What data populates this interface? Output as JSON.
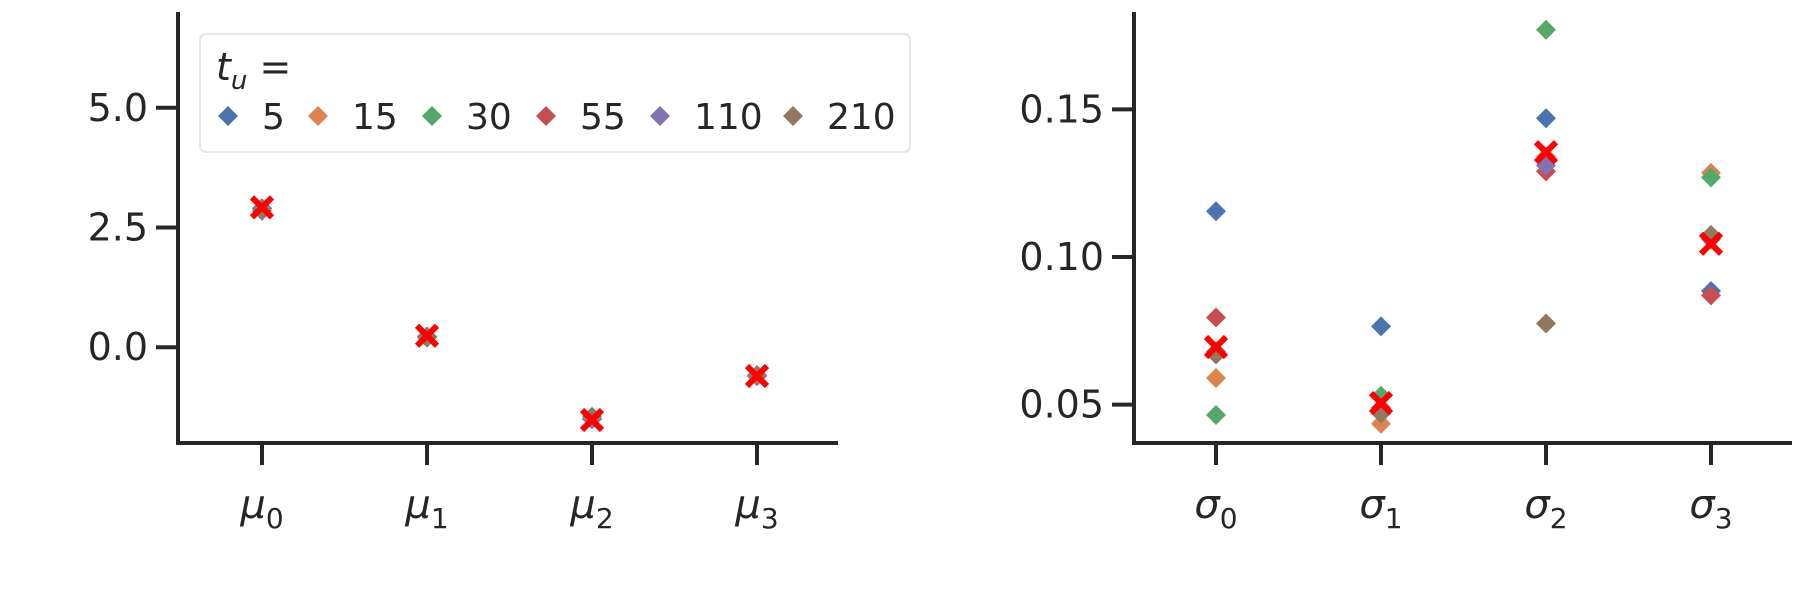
{
  "legend": {
    "title_var": "t",
    "title_sub": "u",
    "title_rest": " =",
    "entries": [
      {
        "label": "5",
        "color": "#4C72B0"
      },
      {
        "label": "15",
        "color": "#DD8452"
      },
      {
        "label": "30",
        "color": "#55A868"
      },
      {
        "label": "55",
        "color": "#C44E52"
      },
      {
        "label": "110",
        "color": "#8172B3"
      },
      {
        "label": "210",
        "color": "#937860"
      }
    ]
  },
  "mean_marker_color": "#FF0000",
  "chart_data": [
    {
      "type": "scatter",
      "legend_position": "upper-left",
      "categories": [
        {
          "symbol": "μ",
          "sub": "0"
        },
        {
          "symbol": "μ",
          "sub": "1"
        },
        {
          "symbol": "μ",
          "sub": "2"
        },
        {
          "symbol": "μ",
          "sub": "3"
        }
      ],
      "yticks": [
        "0.0",
        "2.5",
        "5.0"
      ],
      "ytick_values": [
        0.0,
        2.5,
        5.0
      ],
      "ylim": [
        -2.0,
        7.0
      ],
      "series": [
        {
          "name": "5",
          "values": [
            2.9,
            0.22,
            -1.5,
            -0.6
          ]
        },
        {
          "name": "15",
          "values": [
            2.9,
            0.22,
            -1.5,
            -0.6
          ]
        },
        {
          "name": "30",
          "values": [
            2.9,
            0.22,
            -1.5,
            -0.6
          ]
        },
        {
          "name": "55",
          "values": [
            2.9,
            0.22,
            -1.5,
            -0.6
          ]
        },
        {
          "name": "110",
          "values": [
            2.9,
            0.22,
            -1.5,
            -0.6
          ]
        },
        {
          "name": "210",
          "values": [
            2.85,
            0.2,
            -1.45,
            -0.58
          ]
        }
      ],
      "mean": [
        2.92,
        0.24,
        -1.52,
        -0.6
      ]
    },
    {
      "type": "scatter",
      "categories": [
        {
          "symbol": "σ",
          "sub": "0"
        },
        {
          "symbol": "σ",
          "sub": "1"
        },
        {
          "symbol": "σ",
          "sub": "2"
        },
        {
          "symbol": "σ",
          "sub": "3"
        }
      ],
      "yticks": [
        "0.05",
        "0.10",
        "0.15"
      ],
      "ytick_values": [
        0.05,
        0.1,
        0.15
      ],
      "ylim": [
        0.037,
        0.183
      ],
      "series": [
        {
          "name": "5",
          "values": [
            0.1155,
            0.0765,
            0.147,
            0.0885
          ]
        },
        {
          "name": "15",
          "values": [
            0.059,
            0.0435,
            0.134,
            0.1285
          ]
        },
        {
          "name": "30",
          "values": [
            0.0465,
            0.053,
            0.177,
            0.127
          ]
        },
        {
          "name": "55",
          "values": [
            0.0795,
            0.049,
            0.129,
            0.087
          ]
        },
        {
          "name": "110",
          "values": [
            0.068,
            0.047,
            0.131,
            0.106
          ]
        },
        {
          "name": "210",
          "values": [
            0.067,
            0.047,
            0.0775,
            0.1075
          ]
        }
      ],
      "mean": [
        0.0695,
        0.0505,
        0.1355,
        0.1045
      ]
    }
  ]
}
